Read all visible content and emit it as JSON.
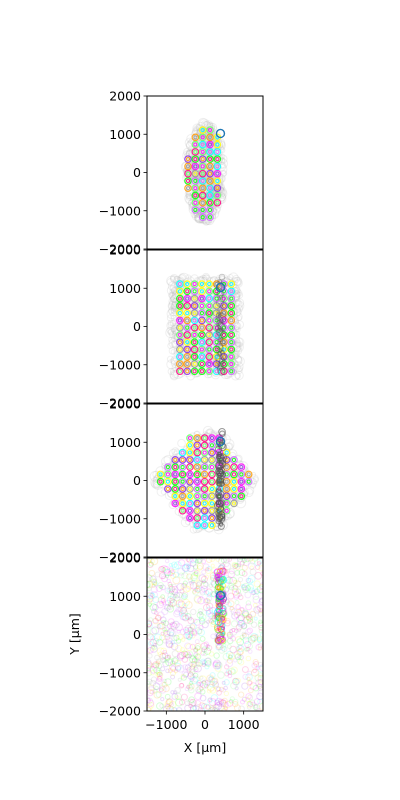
{
  "chart_data": [
    {
      "type": "scatter",
      "panel": "panel-1",
      "pattern": "elliptical-grid",
      "x_extent": [
        -500,
        500
      ],
      "y_extent": [
        -1300,
        1300
      ],
      "highlight": {
        "x": 400,
        "y": 1020
      },
      "xlim": [
        -1500,
        1500
      ],
      "ylim": [
        -2000,
        2000
      ],
      "yticks": [
        "2000",
        "1000",
        "0",
        "−1000",
        "−2000"
      ]
    },
    {
      "type": "scatter",
      "panel": "panel-2",
      "pattern": "rectangular-grid",
      "x_extent": [
        -900,
        900
      ],
      "y_extent": [
        -1300,
        1300
      ],
      "highlight": {
        "x": 400,
        "y": 1020
      },
      "xlim": [
        -1500,
        1500
      ],
      "ylim": [
        -2000,
        2000
      ],
      "yticks": [
        "2000",
        "1000",
        "0",
        "−1000",
        "−2000"
      ]
    },
    {
      "type": "scatter",
      "panel": "panel-3",
      "pattern": "diamond-grid",
      "x_extent": [
        -1400,
        1400
      ],
      "y_extent": [
        -1300,
        1300
      ],
      "highlight": {
        "x": 400,
        "y": 1020
      },
      "xlim": [
        -1500,
        1500
      ],
      "ylim": [
        -2000,
        2000
      ],
      "yticks": [
        "2000",
        "1000",
        "0",
        "−1000",
        "−2000"
      ]
    },
    {
      "type": "scatter",
      "panel": "panel-4",
      "pattern": "diffuse",
      "x_extent": [
        -1500,
        1500
      ],
      "y_extent": [
        -2000,
        2000
      ],
      "highlight": {
        "x": 400,
        "y": 1020
      },
      "xlim": [
        -1500,
        1500
      ],
      "ylim": [
        -2000,
        2000
      ],
      "yticks": [
        "2000",
        "1000",
        "0",
        "−1000",
        "−2000"
      ],
      "xticks": [
        "−1000",
        "0",
        "1000"
      ],
      "xlabel": "X [μm]",
      "ylabel": "Y [μm]"
    }
  ],
  "colors": {
    "highlight": "#1f77b4",
    "palette": [
      "#ff00ff",
      "#00ff00",
      "#ffff00",
      "#8a2be2",
      "#ff0080",
      "#00ffff",
      "#ff9900",
      "#66ff66",
      "#cc66ff",
      "#999999"
    ]
  }
}
